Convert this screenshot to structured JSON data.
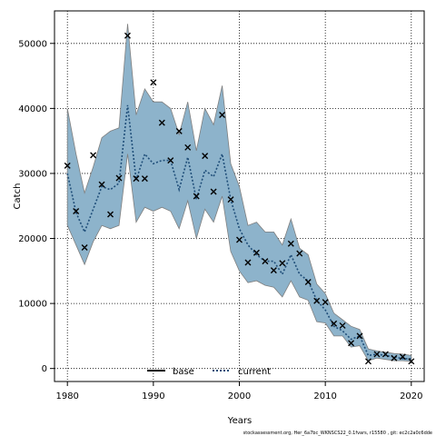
{
  "chart_data": {
    "type": "line",
    "xlabel": "Years",
    "ylabel": "Catch",
    "xlim": [
      1978.5,
      2021.5
    ],
    "ylim": [
      -2000,
      55000
    ],
    "x_ticks": [
      1980,
      1990,
      2000,
      2010,
      2020
    ],
    "y_ticks": [
      0,
      10000,
      20000,
      30000,
      40000,
      50000
    ],
    "grid": true,
    "legend_position": "bottom-center",
    "legend": [
      {
        "label": "base",
        "style": "solid",
        "color": "#000000"
      },
      {
        "label": "current",
        "style": "dotted",
        "color": "#1f4e79"
      }
    ],
    "colors": {
      "band_fill": "#8db3cb",
      "band_stroke": "#7f7f7f",
      "current_line": "#1f4e79",
      "observed_marker": "#000000"
    },
    "years": [
      1980,
      1981,
      1982,
      1983,
      1984,
      1985,
      1986,
      1987,
      1988,
      1989,
      1990,
      1991,
      1992,
      1993,
      1994,
      1995,
      1996,
      1997,
      1998,
      1999,
      2000,
      2001,
      2002,
      2003,
      2004,
      2005,
      2006,
      2007,
      2008,
      2009,
      2010,
      2011,
      2012,
      2013,
      2014,
      2015,
      2016,
      2017,
      2018,
      2019,
      2020
    ],
    "series": [
      {
        "name": "current",
        "values": [
          30000,
          24000,
          21000,
          24500,
          28000,
          27500,
          28500,
          40500,
          29000,
          33000,
          31500,
          32000,
          32000,
          27500,
          32500,
          26000,
          30500,
          29500,
          33000,
          26000,
          21500,
          19000,
          17500,
          16500,
          16500,
          14500,
          17500,
          14500,
          13500,
          10500,
          9000,
          6500,
          5800,
          4500,
          5000,
          2000,
          2200,
          2000,
          1800,
          1500,
          1500
        ]
      },
      {
        "name": "upper",
        "values": [
          40000,
          33000,
          27000,
          31000,
          35500,
          36500,
          37000,
          53000,
          39000,
          43000,
          41000,
          41000,
          40000,
          36000,
          41000,
          33500,
          40000,
          37500,
          43500,
          31500,
          28000,
          22000,
          22500,
          21000,
          21000,
          19000,
          23000,
          18500,
          17500,
          13000,
          11500,
          8500,
          7500,
          6500,
          6000,
          3000,
          2700,
          2500,
          2300,
          2200,
          2000
        ]
      },
      {
        "name": "lower",
        "values": [
          22000,
          19000,
          16000,
          19500,
          22000,
          21500,
          22000,
          33000,
          22500,
          24800,
          24200,
          24800,
          24200,
          21500,
          25800,
          20000,
          24500,
          22500,
          26500,
          18000,
          15000,
          13200,
          13500,
          12800,
          12500,
          11000,
          13500,
          11000,
          10500,
          7200,
          7000,
          5000,
          5000,
          3300,
          3500,
          1200,
          1600,
          1400,
          1200,
          1200,
          1100
        ]
      },
      {
        "name": "observed",
        "marker": "x",
        "values": [
          31200,
          24200,
          18600,
          32800,
          28300,
          23700,
          29300,
          51200,
          29200,
          29200,
          44000,
          37800,
          32000,
          36500,
          34000,
          26500,
          32700,
          27200,
          39000,
          26000,
          19800,
          16300,
          17800,
          16500,
          15100,
          16200,
          19200,
          17700,
          13300,
          10400,
          10200,
          6900,
          6600,
          3900,
          5000,
          1100,
          2200,
          2200,
          1600,
          1800,
          1100
        ]
      }
    ]
  },
  "footnote": "stockassessment.org, Her_6a7bc_WKNSCS22_0.1fvars, r15580 , git: ec2c2a0c6dde"
}
